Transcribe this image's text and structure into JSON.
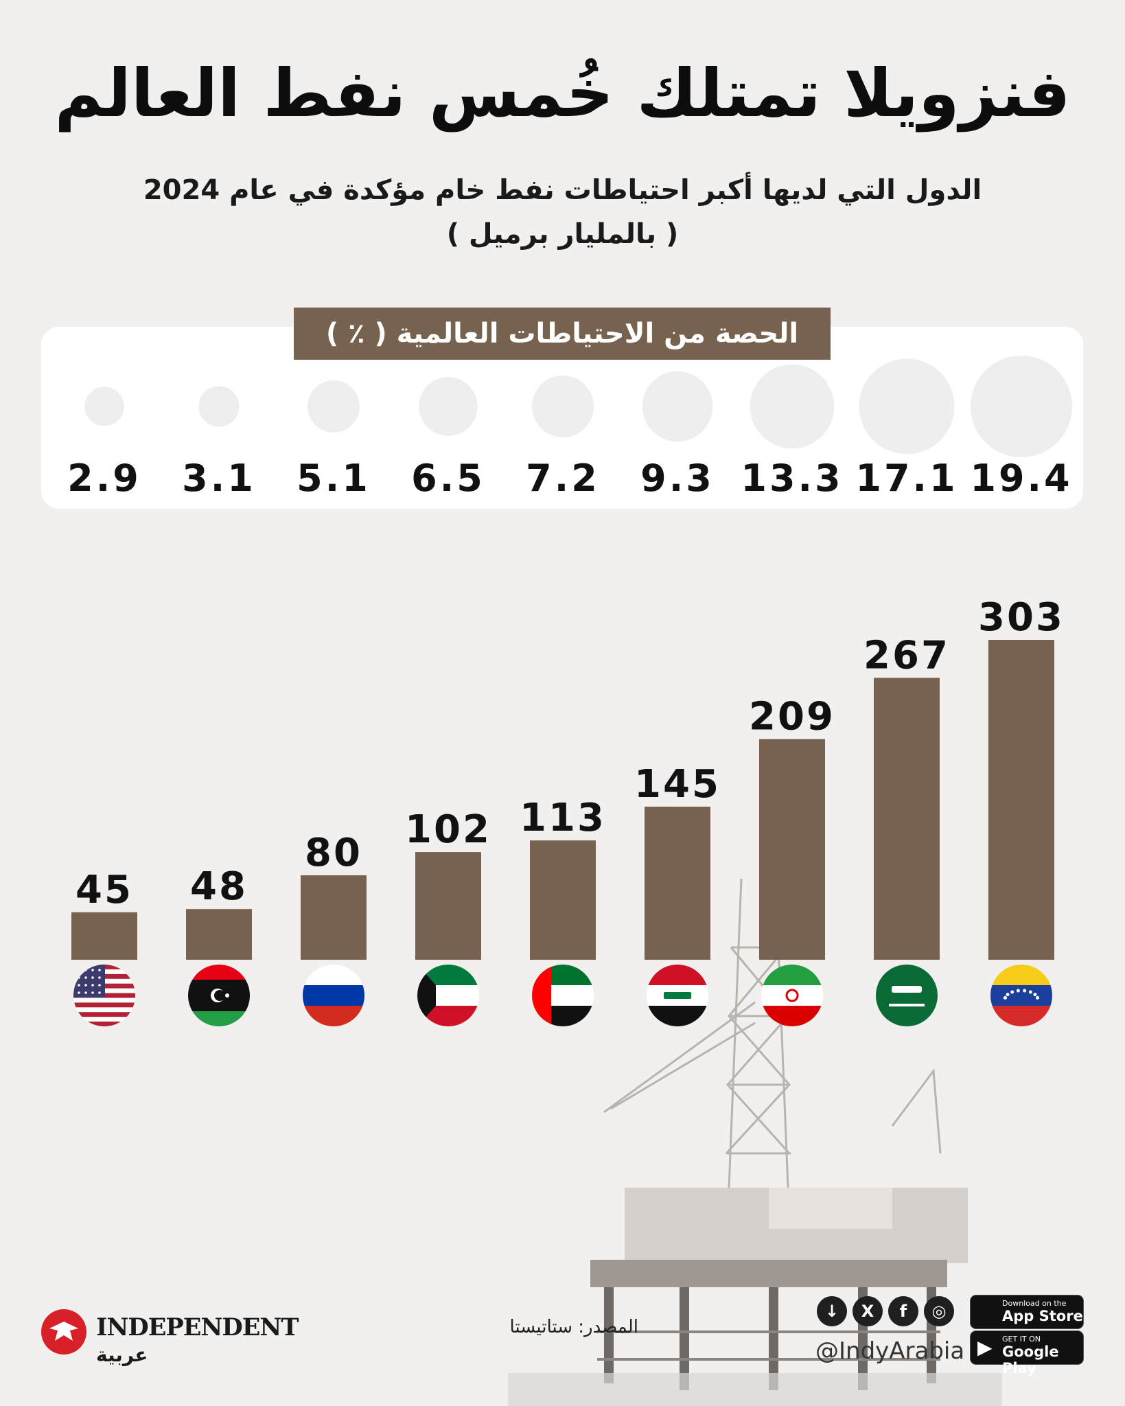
{
  "title": "فنزويلا تمتلك خُمس نفط العالم",
  "subtitle_line1": "الدول التي لديها أكبر احتياطات نفط خام مؤكدة في عام 2024",
  "subtitle_line2": "( بالمليار برميل )",
  "share_header": "الحصة من الاحتياطات العالمية ( ٪ )",
  "source": "المصدر: ستاتيستا",
  "handle": "@IndyArabia",
  "logo": {
    "word": "INDEPENDENT",
    "arabic": "عربية"
  },
  "social_icons": [
    "download-icon",
    "x-icon",
    "facebook-icon",
    "instagram-icon"
  ],
  "stores": {
    "apple_small": "Download on the",
    "apple_big": "App Store",
    "google_small": "GET IT ON",
    "google_big": "Google Play"
  },
  "colors": {
    "bar": "#76624f",
    "bubble": "#eeeeee",
    "background": "#f1f0ef"
  },
  "chart_data": [
    {
      "type": "bar",
      "flags": [
        "Venezuela",
        "Saudi Arabia",
        "Iran",
        "Iraq",
        "UAE",
        "Kuwait",
        "Russia",
        "Libya",
        "USA"
      ],
      "values": [
        303,
        267,
        209,
        145,
        113,
        102,
        80,
        48,
        45
      ],
      "ylim": [
        0,
        303
      ]
    },
    {
      "type": "scatter",
      "values": [
        19.4,
        17.1,
        13.3,
        9.3,
        7.2,
        6.5,
        5.1,
        3.1,
        2.9
      ],
      "labels": [
        "19.4",
        "17.1",
        "13.3",
        "9.3",
        "7.2",
        "6.5",
        "5.1",
        "3.1",
        "2.9"
      ]
    }
  ]
}
